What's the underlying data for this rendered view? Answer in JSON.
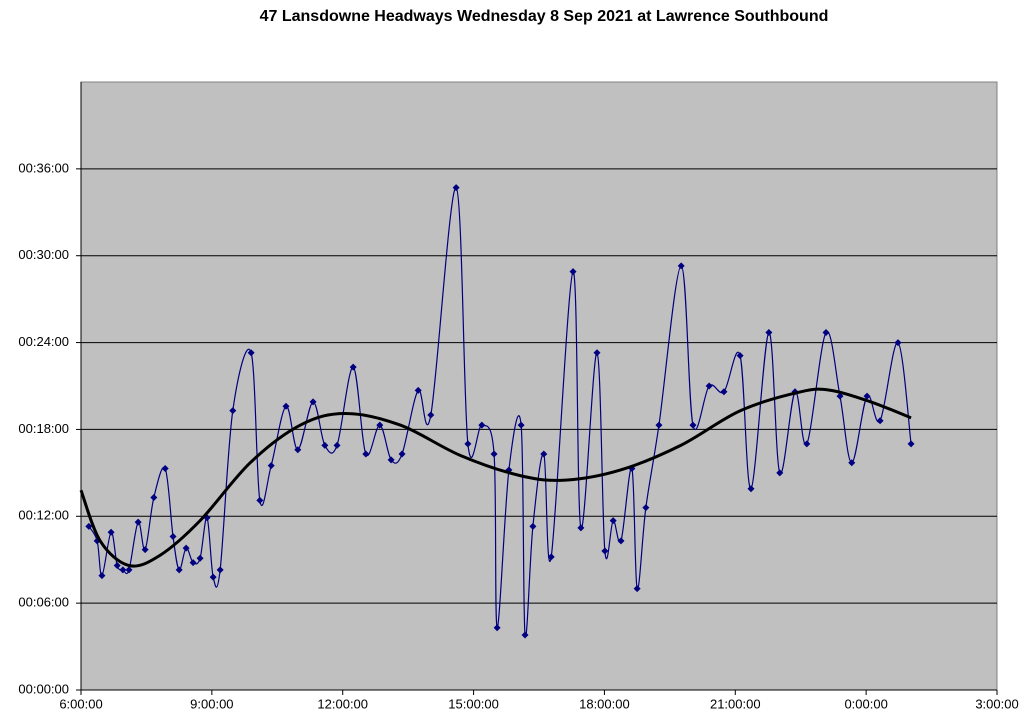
{
  "chart_data": {
    "type": "line",
    "title": "47 Lansdowne Headways Wednesday 8 Sep 2021 at Lawrence Southbound",
    "xlim": [
      6,
      27
    ],
    "xticks": [
      {
        "value": 6,
        "label": "6:00:00"
      },
      {
        "value": 9,
        "label": "9:00:00"
      },
      {
        "value": 12,
        "label": "12:00:00"
      },
      {
        "value": 15,
        "label": "15:00:00"
      },
      {
        "value": 18,
        "label": "18:00:00"
      },
      {
        "value": 21,
        "label": "21:00:00"
      },
      {
        "value": 24,
        "label": "0:00:00"
      },
      {
        "value": 27,
        "label": "3:00:00"
      }
    ],
    "ylim": [
      0,
      42
    ],
    "yticks": [
      {
        "value": 0,
        "label": "00:00:00"
      },
      {
        "value": 6,
        "label": "00:06:00"
      },
      {
        "value": 12,
        "label": "00:12:00"
      },
      {
        "value": 18,
        "label": "00:18:00"
      },
      {
        "value": 24,
        "label": "00:24:00"
      },
      {
        "value": 30,
        "label": "00:30:00"
      },
      {
        "value": 36,
        "label": "00:36:00"
      }
    ],
    "grid": true,
    "background": "#c0c0c0",
    "series": [
      {
        "color": "#000080",
        "markers": true,
        "x": [
          6.18,
          6.37,
          6.48,
          6.69,
          6.83,
          6.96,
          7.1,
          7.31,
          7.47,
          7.67,
          7.93,
          8.11,
          8.25,
          8.41,
          8.57,
          8.73,
          8.89,
          9.03,
          9.19,
          9.48,
          9.9,
          10.1,
          10.36,
          10.7,
          10.97,
          11.32,
          11.59,
          11.87,
          12.24,
          12.53,
          12.85,
          13.11,
          13.36,
          13.73,
          14.02,
          14.6,
          14.87,
          15.19,
          15.47,
          15.54,
          15.81,
          16.09,
          16.18,
          16.36,
          16.61,
          16.78,
          17.28,
          17.46,
          17.83,
          18.01,
          18.2,
          18.38,
          18.63,
          18.75,
          18.95,
          19.25,
          19.76,
          20.03,
          20.4,
          20.74,
          21.11,
          21.36,
          21.77,
          22.02,
          22.37,
          22.64,
          23.08,
          23.4,
          23.67,
          24.02,
          24.32,
          24.73,
          25.03
        ],
        "values": [
          11.3,
          10.3,
          7.9,
          10.9,
          8.6,
          8.3,
          8.3,
          11.6,
          9.7,
          13.3,
          15.3,
          10.6,
          8.3,
          9.8,
          8.8,
          9.1,
          11.9,
          7.8,
          8.3,
          19.3,
          23.3,
          13.1,
          15.5,
          19.6,
          16.6,
          19.9,
          16.9,
          16.9,
          22.3,
          16.3,
          18.3,
          15.9,
          16.3,
          20.7,
          19.0,
          34.7,
          17.0,
          18.3,
          16.3,
          4.3,
          15.2,
          18.3,
          3.8,
          11.3,
          16.3,
          9.2,
          28.9,
          11.2,
          23.3,
          9.6,
          11.7,
          10.3,
          15.3,
          7.0,
          12.6,
          18.3,
          29.3,
          18.3,
          21.0,
          20.6,
          23.1,
          13.9,
          24.7,
          15.0,
          20.6,
          17.0,
          24.7,
          20.3,
          15.7,
          20.3,
          18.6,
          24.0,
          17.0
        ]
      },
      {
        "color": "#000000",
        "markers": false,
        "x": [
          6.0,
          6.44,
          7.1,
          7.81,
          8.73,
          9.88,
          11.03,
          12.06,
          13.32,
          14.7,
          16.08,
          17.11,
          18.37,
          19.75,
          21.12,
          22.5,
          23.19,
          24.11,
          25.03
        ],
        "values": [
          13.8,
          10.3,
          8.6,
          9.3,
          11.7,
          15.7,
          18.3,
          19.1,
          18.3,
          16.2,
          14.8,
          14.5,
          15.2,
          16.9,
          19.3,
          20.6,
          20.7,
          19.9,
          18.8
        ]
      }
    ]
  }
}
